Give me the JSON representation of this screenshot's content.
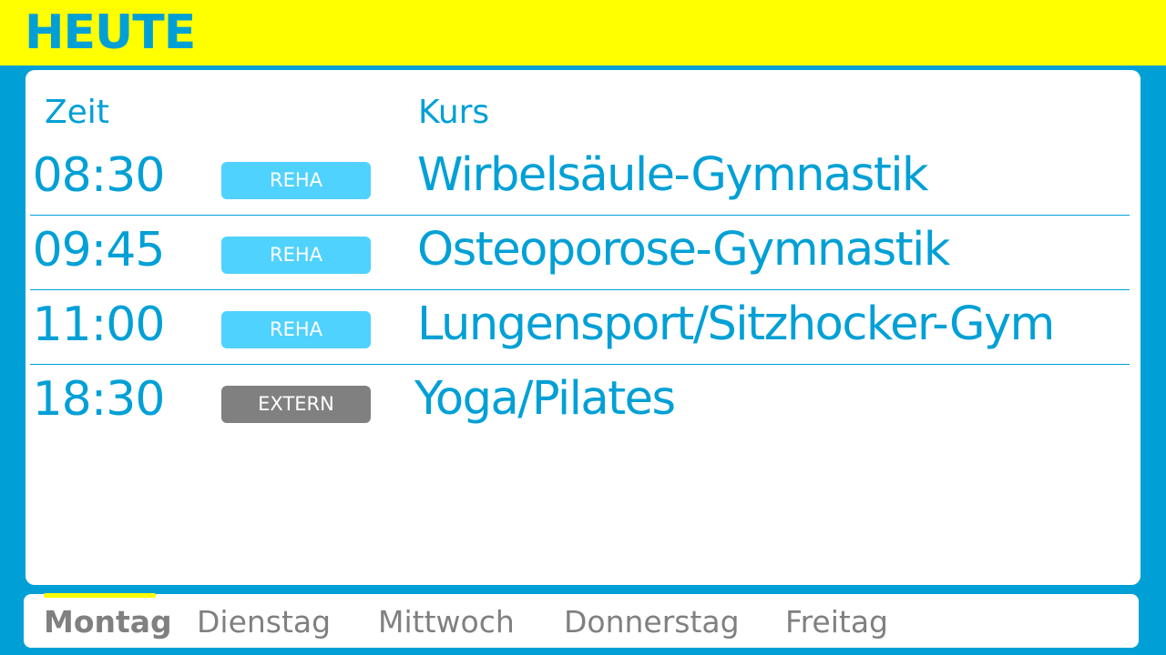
{
  "header": {
    "title": "HEUTE"
  },
  "table": {
    "col_time": "Zeit",
    "col_course": "Kurs",
    "rows": [
      {
        "time": "08:30",
        "badge": "REHA",
        "course": "Wirbelsäule-Gymnastik",
        "badge_color": "#50d2ff"
      },
      {
        "time": "09:45",
        "badge": "REHA",
        "course": "Osteoporose-Gymnastik",
        "badge_color": "#50d2ff"
      },
      {
        "time": "11:00",
        "badge": "REHA",
        "course": "Lungensport/Sitzhocker-Gym",
        "badge_color": "#50d2ff"
      },
      {
        "time": "18:30",
        "badge": "EXTERN",
        "course": "Yoga/Pilates",
        "badge_color": "#808080"
      }
    ]
  },
  "nav": {
    "days": [
      "Montag",
      "Dienstag",
      "Mittwoch",
      "Donnerstag",
      "Freitag"
    ],
    "active": "Montag"
  },
  "colors": {
    "accent": "#00a0d6",
    "header_bg": "#ffff00",
    "text_gray": "#808080"
  }
}
